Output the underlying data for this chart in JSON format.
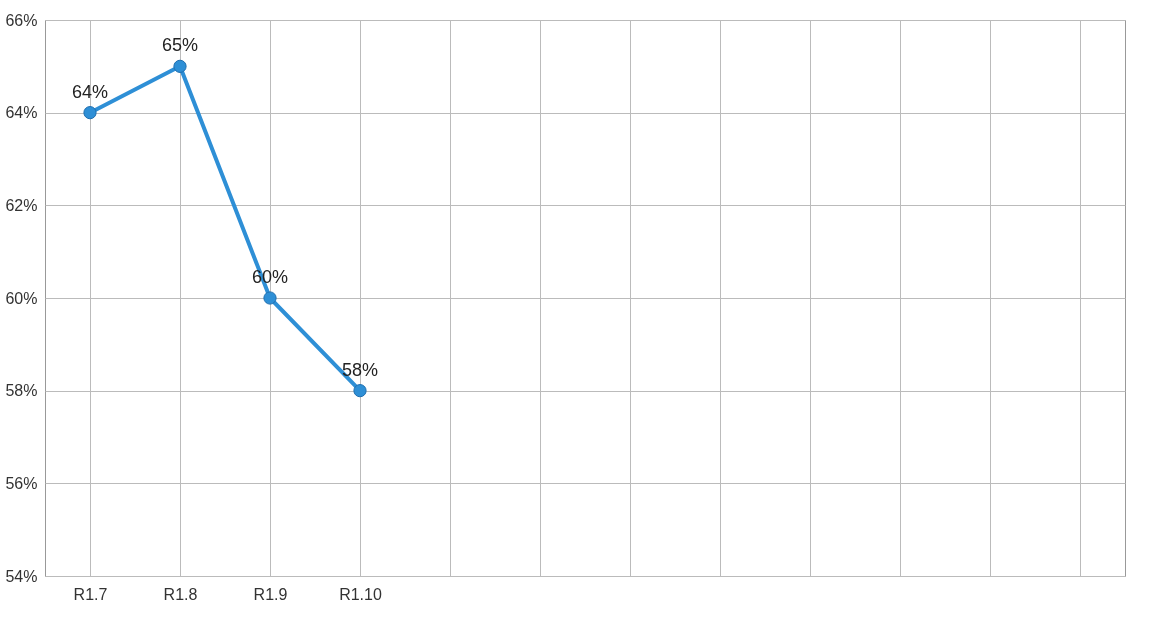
{
  "chart_data": {
    "type": "line",
    "categories": [
      "R1.7",
      "R1.8",
      "R1.9",
      "R1.10",
      null,
      null,
      null,
      null,
      null,
      null,
      null,
      null
    ],
    "series": [
      {
        "color": "#2e8fd6",
        "values": [
          64,
          65,
          60,
          58,
          null,
          null,
          null,
          null,
          null,
          null,
          null,
          null
        ],
        "value_labels": [
          "64%",
          "65%",
          "60%",
          "58%",
          null,
          null,
          null,
          null,
          null,
          null,
          null,
          null
        ]
      }
    ],
    "ylim": [
      54,
      66
    ],
    "yticks": [
      {
        "value": 54,
        "label": "54%"
      },
      {
        "value": 56,
        "label": "56%"
      },
      {
        "value": 58,
        "label": "58%"
      },
      {
        "value": 60,
        "label": "60%"
      },
      {
        "value": 62,
        "label": "62%"
      },
      {
        "value": 64,
        "label": "64%"
      },
      {
        "value": 66,
        "label": "66%"
      }
    ],
    "grid": true,
    "marker": "circle"
  }
}
